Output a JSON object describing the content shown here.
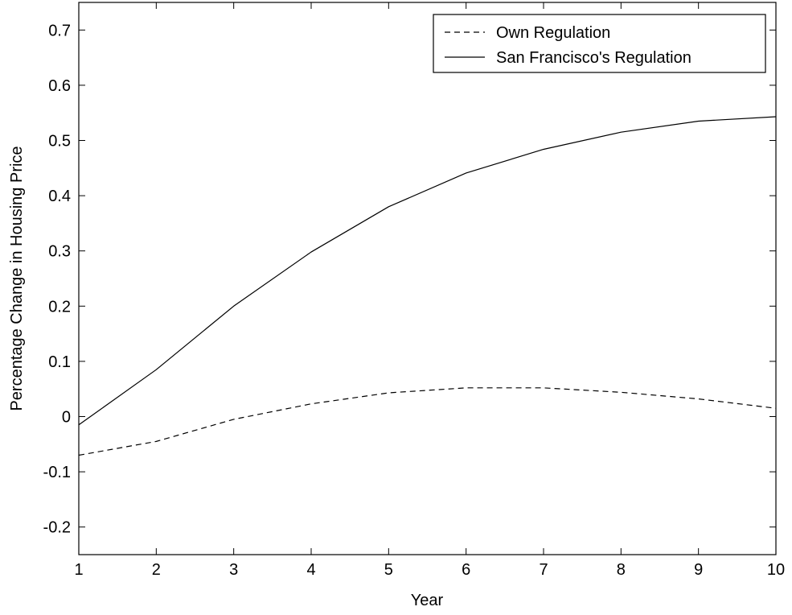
{
  "chart_data": {
    "type": "line",
    "title": "",
    "xlabel": "Year",
    "ylabel": "Percentage Change in Housing Price",
    "xlim": [
      1,
      10
    ],
    "ylim": [
      -0.25,
      0.75
    ],
    "xticks": [
      1,
      2,
      3,
      4,
      5,
      6,
      7,
      8,
      9,
      10
    ],
    "yticks": [
      -0.2,
      -0.1,
      0,
      0.1,
      0.2,
      0.3,
      0.4,
      0.5,
      0.6,
      0.7
    ],
    "grid": false,
    "legend_position": "top-right",
    "x": [
      1,
      2,
      3,
      4,
      5,
      6,
      7,
      8,
      9,
      10
    ],
    "series": [
      {
        "name": "Own Regulation",
        "style": "dashed",
        "color": "#000000",
        "values": [
          -0.07,
          -0.045,
          -0.005,
          0.023,
          0.043,
          0.052,
          0.052,
          0.044,
          0.032,
          0.015
        ]
      },
      {
        "name": "San Francisco's Regulation",
        "style": "solid",
        "color": "#000000",
        "values": [
          -0.015,
          0.085,
          0.2,
          0.298,
          0.38,
          0.441,
          0.484,
          0.515,
          0.535,
          0.543
        ]
      }
    ]
  }
}
